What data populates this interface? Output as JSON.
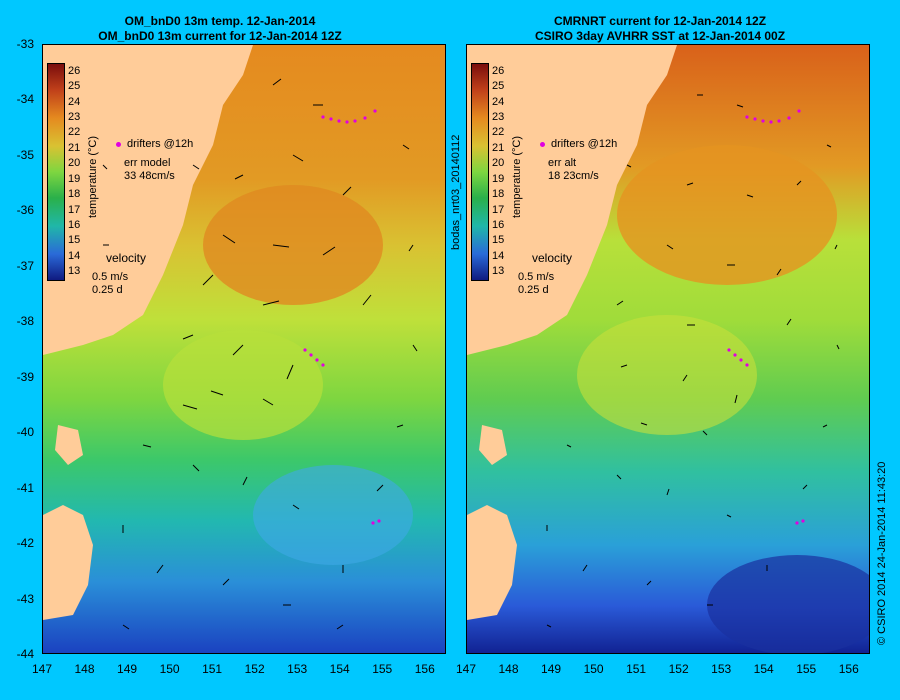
{
  "left_panel": {
    "title_line1": "OM_bnD0 13m temp. 12-Jan-2014",
    "title_line2": "OM_bnD0 13m current for 12-Jan-2014 12Z",
    "legend_drifters": "drifters @12h",
    "err_label": "err model",
    "err_value": "33 48cm/s",
    "velocity_label": "velocity",
    "velocity_scale1": "0.5 m/s",
    "velocity_scale2": "0.25 d"
  },
  "right_panel": {
    "title_line1": "CMRNRT current for 12-Jan-2014 12Z",
    "title_line2": "CSIRO 3day AVHRR SST at 12-Jan-2014 00Z",
    "legend_drifters": "drifters @12h",
    "err_label": "err alt",
    "err_value": "18 23cm/s",
    "velocity_label": "velocity",
    "velocity_scale1": "0.5 m/s",
    "velocity_scale2": "0.25 d",
    "side_label": "bodas_nrt03_20140112"
  },
  "colorbar": {
    "title": "temperature (°C)",
    "ticks": [
      "26",
      "25",
      "24",
      "23",
      "22",
      "21",
      "20",
      "19",
      "18",
      "17",
      "16",
      "15",
      "14",
      "13"
    ],
    "colors": [
      "#7a0d0d",
      "#b53b12",
      "#d9611a",
      "#e58a1f",
      "#eea22d",
      "#d9c232",
      "#c8d83a",
      "#8fd82e",
      "#44c826",
      "#2ab04a",
      "#20b7a8",
      "#2a8fd8",
      "#2a5ad8",
      "#1a2aa0"
    ]
  },
  "lat_ticks": [
    "-33",
    "-34",
    "-35",
    "-36",
    "-37",
    "-38",
    "-39",
    "-40",
    "-41",
    "-42",
    "-43",
    "-44"
  ],
  "lon_ticks": [
    "147",
    "148",
    "149",
    "150",
    "151",
    "152",
    "153",
    "154",
    "155",
    "156"
  ],
  "credit": "© CSIRO 2014   24-Jan-2014 11:43:20",
  "colors": {
    "background": "#00c8ff",
    "land": "#ffcc99",
    "drifter": "#e000e0"
  }
}
